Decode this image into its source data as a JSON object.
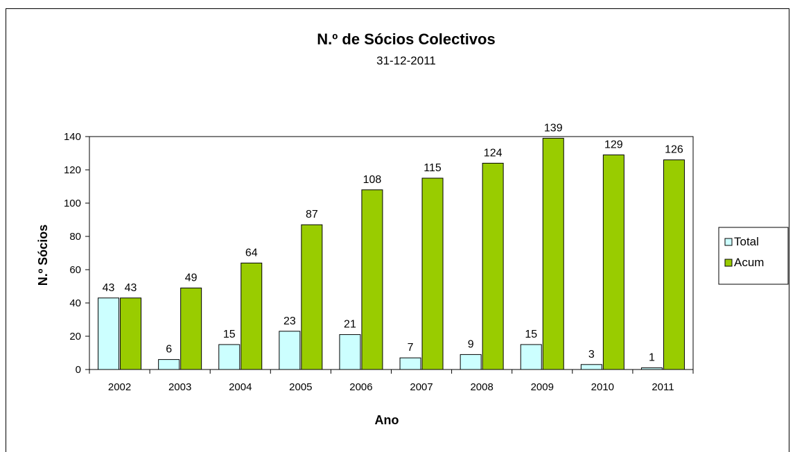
{
  "chart_data": {
    "type": "bar",
    "title": "N.º de Sócios Colectivos",
    "subtitle": "31-12-2011",
    "xlabel": "Ano",
    "ylabel": "N.º Sócios",
    "categories": [
      "2002",
      "2003",
      "2004",
      "2005",
      "2006",
      "2007",
      "2008",
      "2009",
      "2010",
      "2011"
    ],
    "series": [
      {
        "name": "Total",
        "color": "#ccffff",
        "values": [
          43,
          6,
          15,
          23,
          21,
          7,
          9,
          15,
          3,
          1
        ]
      },
      {
        "name": "Acum",
        "color": "#99cc00",
        "values": [
          43,
          49,
          64,
          87,
          108,
          115,
          124,
          139,
          129,
          126
        ]
      }
    ],
    "ylim": [
      0,
      140
    ],
    "yticks": [
      0,
      20,
      40,
      60,
      80,
      100,
      120,
      140
    ],
    "grid": false,
    "legend": "right"
  }
}
